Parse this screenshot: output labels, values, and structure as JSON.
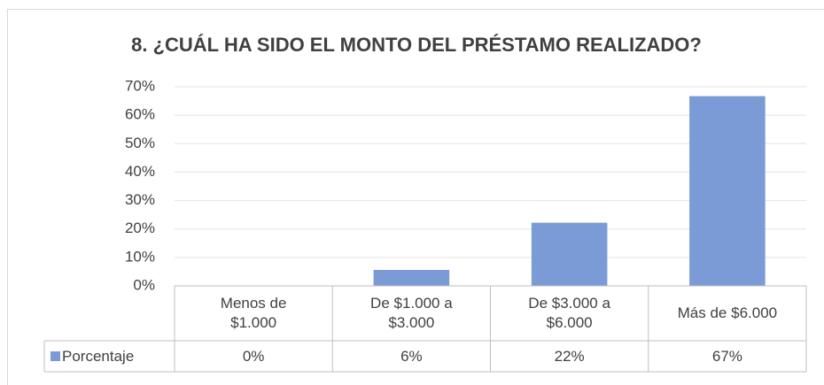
{
  "chart_data": {
    "type": "bar",
    "title": "8. ¿CUÁL HA SIDO EL MONTO DEL PRÉSTAMO REALIZADO?",
    "categories": [
      "Menos de\n$1.000",
      "De $1.000 a\n$3.000",
      "De $3.000 a\n$6.000",
      "Más de $6.000"
    ],
    "series": [
      {
        "name": "Porcentaje",
        "color": "#7a9bd6",
        "values": [
          0,
          5.6,
          22.2,
          66.7
        ],
        "value_labels": [
          "0%",
          "6%",
          "22%",
          "67%"
        ]
      }
    ],
    "ylim": [
      0,
      70
    ],
    "yticks": [
      {
        "value": 0,
        "label": "0%"
      },
      {
        "value": 10,
        "label": "10%"
      },
      {
        "value": 20,
        "label": "20%"
      },
      {
        "value": 30,
        "label": "30%"
      },
      {
        "value": 40,
        "label": "40%"
      },
      {
        "value": 50,
        "label": "50%"
      },
      {
        "value": 60,
        "label": "60%"
      },
      {
        "value": 70,
        "label": "70%"
      }
    ],
    "grid": true
  }
}
